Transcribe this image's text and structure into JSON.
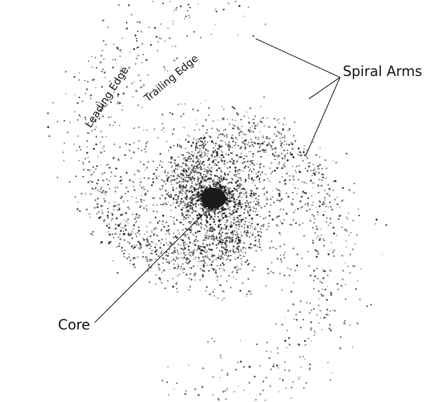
{
  "labels": {
    "spiral_arms": "Spiral Arms",
    "core": "Core",
    "leading_edge": "Leading Edge",
    "trailing_edge": "Trailing Edge"
  },
  "style": {
    "star_color": "#1a1a1a",
    "line_color": "#111111",
    "background": "#ffffff"
  }
}
